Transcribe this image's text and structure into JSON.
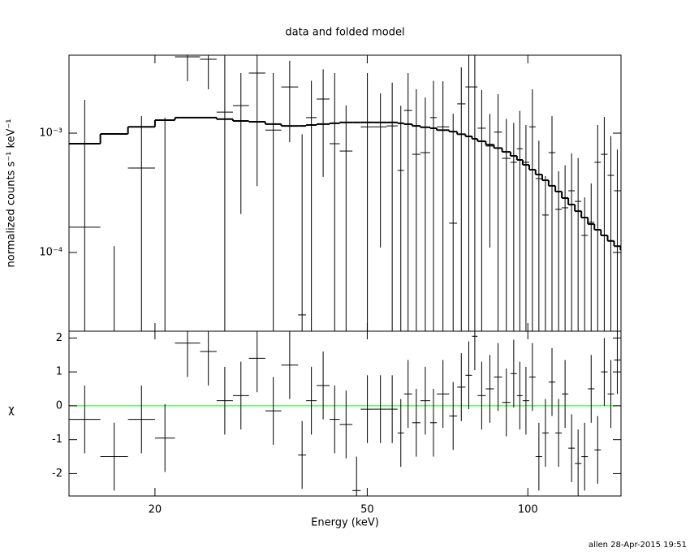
{
  "chart_data": [
    {
      "type": "step",
      "title": "data and folded model",
      "ylabel": "normalized counts s⁻¹ keV⁻¹",
      "xscale": "log",
      "yscale": "log",
      "ylim": [
        2.19e-05,
        0.0045
      ],
      "yticks": [
        {
          "value": 0.001,
          "label": "10⁻³"
        },
        {
          "value": 0.0001,
          "label": "10⁻⁴"
        }
      ],
      "bins": [
        13.8,
        15.8,
        17.8,
        20.0,
        21.8,
        24.3,
        26.1,
        28.0,
        30.0,
        32.2,
        34.5,
        37.1,
        38.4,
        40.2,
        42.5,
        44.4,
        46.9,
        48.6,
        51.5,
        54.4,
        57.0,
        58.6,
        60.7,
        62.9,
        65.6,
        67.5,
        71.2,
        73.7,
        76.4,
        78.6,
        80.5,
        83.4,
        86.4,
        89.5,
        92.8,
        95.4,
        97.8,
        100.6,
        103.4,
        106.4,
        109.4,
        112.6,
        115.8,
        119.1,
        122.5,
        126.0,
        129.6,
        133.3,
        137.1,
        141.1,
        145.1,
        149.2,
        151.0
      ],
      "data": {
        "color": "#000000",
        "values": [
          0.000163,
          1.5e-05,
          0.00051,
          2e-05,
          0.00436,
          0.00416,
          0.0015,
          0.0017,
          0.00319,
          0.00106,
          0.00244,
          3e-05,
          0.00135,
          0.00193,
          0.000816,
          0.000708,
          1.5e-05,
          0.00113,
          0.00113,
          0.00115,
          0.000487,
          0.00155,
          0.000665,
          0.000687,
          0.00135,
          0.00113,
          0.000176,
          0.00176,
          0.00244,
          0.00244,
          0.0011,
          0.00078,
          0.00102,
          0.000615,
          0.00057,
          0.00074,
          0.00057,
          0.00113,
          0.000416,
          0.000206,
          0.000687,
          0.00023,
          0.000237,
          0.000329,
          0.000268,
          0.000139,
          0.000179,
          0.00057,
          0.000665,
          0.000443,
          0.000329,
          0.000665
        ],
        "errors": [
          0.00174,
          9.8e-05,
          0.00088,
          0.00133,
          0.00164,
          0.00183,
          0.003,
          0.00149,
          0.00283,
          0.00213,
          0.0016,
          0.00095,
          0.0014,
          0.0015,
          0.00237,
          0.001,
          5e-06,
          0.00206,
          0.00102,
          0.0015,
          0.00121,
          0.00164,
          0.00167,
          0.0013,
          0.0014,
          0.00159,
          0.00128,
          0.0018,
          0.0025,
          0.0025,
          0.0012,
          0.00067,
          0.0011,
          0.0007,
          0.00065,
          0.0008,
          0.0006,
          0.0012,
          0.00045,
          0.00023,
          0.0007,
          0.00025,
          0.0003,
          0.00035,
          0.00035,
          0.00015,
          0.0002,
          0.0006,
          0.0007,
          0.0005,
          0.0004,
          0.0007
        ]
      },
      "model": {
        "color": "#000000",
        "values": [
          0.000816,
          0.000984,
          0.00113,
          0.001285,
          0.00135,
          0.00135,
          0.00131,
          0.001265,
          0.001245,
          0.00119,
          0.00115,
          0.00115,
          0.00117,
          0.00119,
          0.00121,
          0.00123,
          0.00123,
          0.00123,
          0.00123,
          0.00123,
          0.00121,
          0.00119,
          0.00115,
          0.00112,
          0.0011,
          0.00106,
          0.00103,
          0.00098,
          0.00094,
          0.000896,
          0.000855,
          0.0008,
          0.00075,
          0.000697,
          0.000645,
          0.000597,
          0.000543,
          0.000494,
          0.00045,
          0.000403,
          0.000362,
          0.000324,
          0.000286,
          0.000252,
          0.000222,
          0.000196,
          0.000173,
          0.000155,
          0.000139,
          0.000125,
          0.000113,
          0.000105
        ]
      }
    },
    {
      "type": "residual",
      "xlabel": "Energy (keV)",
      "ylabel": "χ",
      "footer": "allen 28-Apr-2015 19:51",
      "xscale": "log",
      "yscale": "linear",
      "xlim": [
        13.8,
        149.5
      ],
      "xticks": [
        20,
        50,
        100
      ],
      "ylim": [
        -2.66,
        2.2
      ],
      "yticks": [
        -2,
        -1,
        0,
        1,
        2
      ],
      "reference_line": {
        "value": 0,
        "color": "#00ff00"
      },
      "color": "#000000",
      "values": [
        -0.4,
        -1.5,
        -0.4,
        -0.95,
        1.85,
        1.6,
        0.15,
        0.3,
        1.4,
        -0.15,
        1.2,
        -1.45,
        0.15,
        0.6,
        -0.4,
        -0.55,
        -2.5,
        -0.1,
        -0.1,
        -0.1,
        -0.8,
        0.35,
        -0.5,
        0.15,
        -0.5,
        0.35,
        -0.3,
        0.55,
        0.9,
        2.05,
        0.3,
        0.5,
        0.85,
        0.1,
        0.95,
        0.3,
        0.15,
        0.85,
        -1.5,
        -0.8,
        0.7,
        -0.8,
        0.35,
        -1.25,
        -1.7,
        -1.5,
        0.5,
        -1.3,
        1.0,
        0.35,
        1.35,
        0.95
      ],
      "errors": [
        1,
        1,
        1,
        1,
        1,
        1,
        1,
        1,
        1,
        1,
        1,
        1,
        1,
        1,
        1,
        1,
        1,
        1,
        1,
        1,
        1,
        1,
        1,
        1,
        1,
        1,
        1,
        1,
        1,
        1,
        1,
        1,
        1,
        1,
        1,
        1,
        1,
        1,
        1,
        1,
        1,
        1,
        1,
        1,
        1,
        1,
        1,
        1,
        1,
        1,
        1,
        1
      ]
    }
  ]
}
